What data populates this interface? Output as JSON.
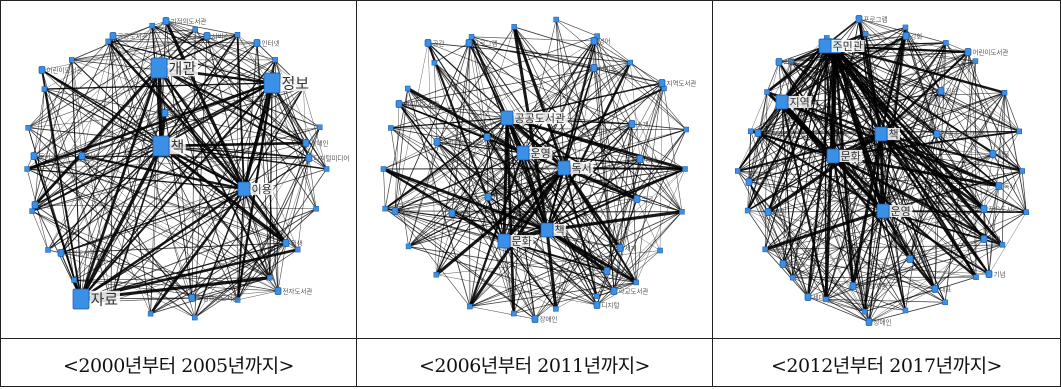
{
  "panels": [
    {
      "caption": "<2000년부터 2005년까지>",
      "nodes": [
        {
          "label": "자료",
          "size": 3
        },
        {
          "label": "책",
          "size": 3
        },
        {
          "label": "개관",
          "size": 3
        },
        {
          "label": "정보",
          "size": 3
        },
        {
          "label": "이용",
          "size": 2
        },
        {
          "label": "공공도서관",
          "size": 1
        },
        {
          "label": "기적의도서관",
          "size": 1
        },
        {
          "label": "서비스",
          "size": 1
        },
        {
          "label": "인터넷",
          "size": 1
        },
        {
          "label": "어린이도서관",
          "size": 1
        },
        {
          "label": "장애인",
          "size": 1
        },
        {
          "label": "디지털미디어",
          "size": 1
        },
        {
          "label": "독서",
          "size": 1
        },
        {
          "label": "시설",
          "size": 1
        },
        {
          "label": "운영",
          "size": 1
        },
        {
          "label": "학생",
          "size": 1
        },
        {
          "label": "지역도서관",
          "size": 1
        },
        {
          "label": "국립중앙도서관",
          "size": 1
        },
        {
          "label": "전자도서관",
          "size": 1
        },
        {
          "label": "문화",
          "size": 1
        }
      ]
    },
    {
      "caption": "<2006년부터 2011년까지>",
      "nodes": [
        {
          "label": "운영",
          "size": 2
        },
        {
          "label": "독서",
          "size": 2
        },
        {
          "label": "문화",
          "size": 2
        },
        {
          "label": "책",
          "size": 2
        },
        {
          "label": "공공도서관",
          "size": 2
        },
        {
          "label": "개관",
          "size": 1
        },
        {
          "label": "이용",
          "size": 1
        },
        {
          "label": "국립중앙도서관",
          "size": 1
        },
        {
          "label": "정보",
          "size": 1
        },
        {
          "label": "시설",
          "size": 1
        },
        {
          "label": "영어",
          "size": 1
        },
        {
          "label": "서비스",
          "size": 1
        },
        {
          "label": "지역도서관",
          "size": 1
        },
        {
          "label": "소개",
          "size": 1
        },
        {
          "label": "행사",
          "size": 1
        },
        {
          "label": "학교도서관",
          "size": 1
        },
        {
          "label": "세계",
          "size": 1
        },
        {
          "label": "대출",
          "size": 1
        },
        {
          "label": "프로그램",
          "size": 1
        },
        {
          "label": "어린이도서관",
          "size": 1
        },
        {
          "label": "디지털",
          "size": 1
        },
        {
          "label": "공간",
          "size": 1
        },
        {
          "label": "무료",
          "size": 1
        },
        {
          "label": "장애인",
          "size": 1
        }
      ]
    },
    {
      "caption": "<2012년부터 2017년까지>",
      "nodes": [
        {
          "label": "개관",
          "size": 2
        },
        {
          "label": "주민",
          "size": 2
        },
        {
          "label": "책",
          "size": 2
        },
        {
          "label": "문화",
          "size": 2
        },
        {
          "label": "운영",
          "size": 2
        },
        {
          "label": "지역",
          "size": 2
        },
        {
          "label": "프로그램",
          "size": 1
        },
        {
          "label": "강화",
          "size": 1
        },
        {
          "label": "어린이도서관",
          "size": 1
        },
        {
          "label": "국립중앙도서관",
          "size": 1
        },
        {
          "label": "작은도서관",
          "size": 1
        },
        {
          "label": "학생",
          "size": 1
        },
        {
          "label": "기념",
          "size": 1
        },
        {
          "label": "공공도서관",
          "size": 1
        },
        {
          "label": "장애인",
          "size": 1
        },
        {
          "label": "서비스",
          "size": 1
        },
        {
          "label": "마을",
          "size": 1
        },
        {
          "label": "시설",
          "size": 1
        },
        {
          "label": "이용",
          "size": 1
        },
        {
          "label": "대표",
          "size": 1
        },
        {
          "label": "기증",
          "size": 1
        },
        {
          "label": "정보",
          "size": 1
        },
        {
          "label": "공간",
          "size": 1
        },
        {
          "label": "독서",
          "size": 1
        },
        {
          "label": "사람",
          "size": 1
        },
        {
          "label": "세대",
          "size": 1
        }
      ]
    }
  ],
  "colors": {
    "node_fill": "#3a8fe6",
    "node_stroke": "#1a5aa8",
    "edge": "#000000",
    "label": "#555555",
    "big_label": "#333333"
  }
}
